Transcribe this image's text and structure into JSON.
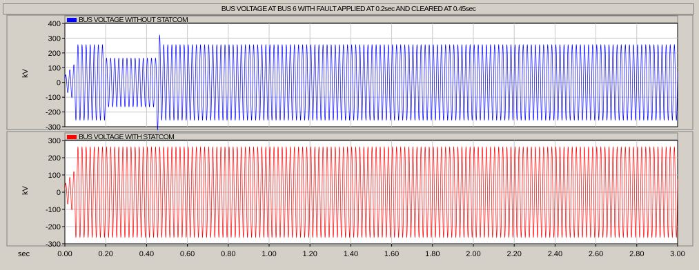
{
  "window": {
    "title": "BUS VOLTAGE AT BUS 6 WITH FAULT APPLIED AT 0.2sec AND CLEARED AT 0.45sec"
  },
  "x_axis": {
    "unit_label": "sec",
    "range": [
      0.0,
      3.0
    ],
    "tick_labels": [
      "0.00",
      "0.20",
      "0.40",
      "0.60",
      "0.80",
      "1.00",
      "1.20",
      "1.40",
      "1.60",
      "1.80",
      "2.00",
      "2.20",
      "2.40",
      "2.60",
      "2.80",
      "3.00"
    ]
  },
  "colors": {
    "frame_bg": "#d4d0c8",
    "plot_bg": "#ffffff",
    "grid": "#c8c8c8",
    "axis": "#000000",
    "blue_series": "#0000ff",
    "red_series": "#ff0000"
  },
  "chart_data": [
    {
      "type": "line",
      "title": "",
      "xlabel": "sec",
      "ylabel": "kV",
      "xlim": [
        0.0,
        3.0
      ],
      "ylim": [
        -300,
        400
      ],
      "yticks": [
        -300,
        -200,
        -100,
        0,
        100,
        200,
        300,
        400
      ],
      "ytick_labels": [
        "-300",
        "-200",
        "-100",
        "0",
        "100",
        "200",
        "300",
        "400"
      ],
      "grid": true,
      "legend": "top-left",
      "series": [
        {
          "name": "BUS VOLTAGE WITHOUT STATCOM",
          "color": "#0000ff",
          "frequency_hz": 50,
          "description_segments": [
            {
              "t_start": 0.0,
              "t_end": 0.05,
              "amplitude_kv": 130
            },
            {
              "t_start": 0.05,
              "t_end": 0.2,
              "amplitude_kv": 255
            },
            {
              "t_start": 0.2,
              "t_end": 0.45,
              "amplitude_kv": 165
            },
            {
              "t_start": 0.45,
              "t_end": 0.47,
              "amplitude_kv": 320
            },
            {
              "t_start": 0.47,
              "t_end": 3.0,
              "amplitude_kv": 255
            }
          ],
          "x": [
            0.0,
            0.05,
            0.2,
            0.45,
            0.46,
            0.5,
            1.0,
            2.0,
            3.0
          ],
          "y_peak": [
            130,
            255,
            165,
            320,
            255,
            255,
            255,
            255,
            255
          ]
        }
      ]
    },
    {
      "type": "line",
      "title": "",
      "xlabel": "sec",
      "ylabel": "kV",
      "xlim": [
        0.0,
        3.0
      ],
      "ylim": [
        -300,
        300
      ],
      "yticks": [
        -300,
        -200,
        -100,
        0,
        100,
        200,
        300
      ],
      "ytick_labels": [
        "-300",
        "-200",
        "-100",
        "0",
        "100",
        "200",
        "300"
      ],
      "grid": true,
      "legend": "top-left",
      "series": [
        {
          "name": "BUS VOLTAGE WITH STATCOM",
          "color": "#ff0000",
          "frequency_hz": 50,
          "description_segments": [
            {
              "t_start": 0.0,
              "t_end": 0.05,
              "amplitude_kv": 130
            },
            {
              "t_start": 0.05,
              "t_end": 3.0,
              "amplitude_kv": 262
            }
          ],
          "x": [
            0.0,
            0.05,
            0.5,
            1.0,
            2.0,
            3.0
          ],
          "y_peak": [
            130,
            262,
            262,
            262,
            262,
            262
          ]
        }
      ]
    }
  ]
}
